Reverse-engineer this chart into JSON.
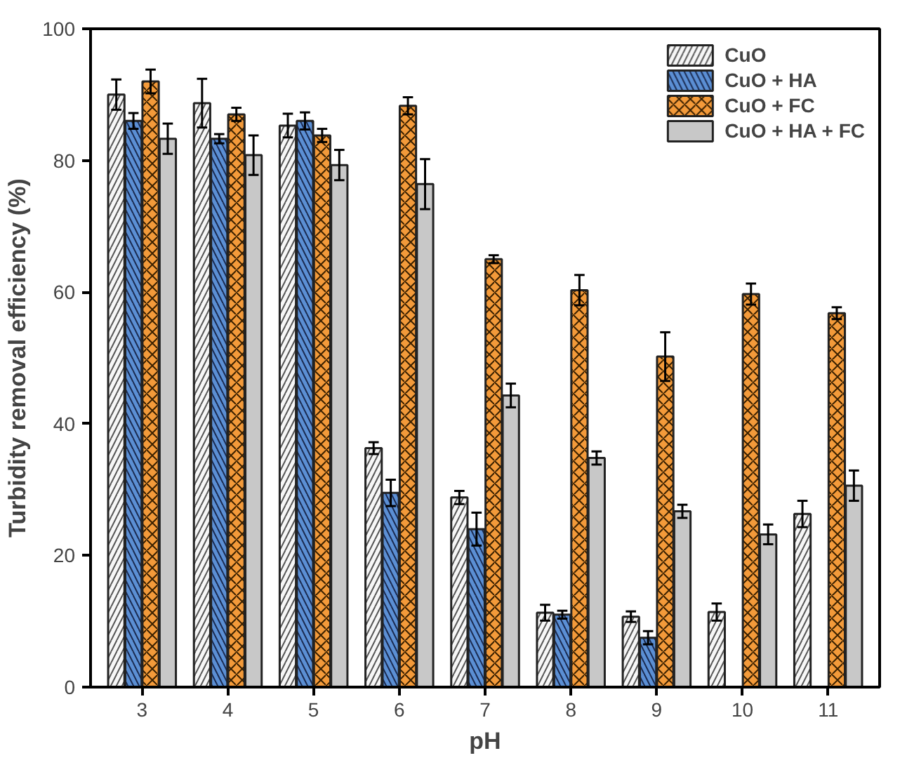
{
  "chart_data": {
    "type": "bar",
    "xlabel": "pH",
    "ylabel": "Turbidity removal efficiency (%)",
    "categories": [
      "3",
      "4",
      "5",
      "6",
      "7",
      "8",
      "9",
      "10",
      "11"
    ],
    "ylim": [
      0,
      100
    ],
    "yticks": [
      0,
      20,
      40,
      60,
      80,
      100
    ],
    "grid": false,
    "legend": "top right",
    "series": [
      {
        "name": "CuO",
        "color": "#f7f7f7",
        "values": [
          90,
          88.7,
          85.3,
          36.3,
          28.8,
          11.3,
          10.7,
          11.4,
          26.3
        ],
        "errors": [
          2.3,
          3.7,
          1.8,
          0.9,
          1,
          1.2,
          0.8,
          1.3,
          2
        ]
      },
      {
        "name": "CuO + HA",
        "color": "#5b8fd4",
        "values": [
          86,
          83.3,
          86,
          29.5,
          24,
          11,
          7.5,
          null,
          null
        ],
        "errors": [
          1.2,
          0.7,
          1.3,
          2,
          2.5,
          0.6,
          1,
          null,
          null
        ]
      },
      {
        "name": "CuO + FC",
        "color": "#f39a3a",
        "values": [
          92,
          87,
          83.8,
          88.3,
          65,
          60.3,
          50.2,
          59.7,
          56.8
        ],
        "errors": [
          1.8,
          1,
          1,
          1.3,
          0.6,
          2.3,
          3.7,
          1.6,
          0.9
        ]
      },
      {
        "name": "CuO + HA + FC",
        "color": "#c8c8c8",
        "values": [
          83.3,
          80.8,
          79.3,
          76.4,
          44.3,
          34.8,
          26.7,
          23.2,
          30.6
        ],
        "errors": [
          2.3,
          3,
          2.3,
          3.8,
          1.8,
          1,
          1,
          1.5,
          2.3
        ]
      }
    ]
  }
}
